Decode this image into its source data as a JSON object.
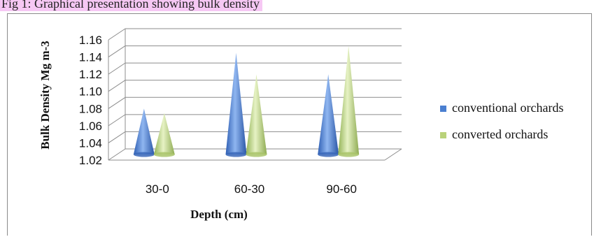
{
  "caption": "Fig 1: Graphical presentation showing bulk density",
  "colors": {
    "caption_highlight": "#f6c8f4",
    "series": [
      "#4a7fd0",
      "#b9d27a"
    ],
    "grid": "#8c8c8c"
  },
  "chart_data": {
    "type": "bar",
    "style": "3d-cone",
    "categories": [
      "30-0",
      "60-30",
      "90-60"
    ],
    "series": [
      {
        "name": "conventional orchards",
        "values": [
          1.075,
          1.14,
          1.115
        ]
      },
      {
        "name": "converted orchards",
        "values": [
          1.07,
          1.115,
          1.148
        ]
      }
    ],
    "xlabel": "Depth (cm)",
    "ylabel": "Bulk Density Mg m-3",
    "ylim": [
      1.02,
      1.16
    ],
    "yticks": [
      "1.02",
      "1.04",
      "1.06",
      "1.08",
      "1.10",
      "1.12",
      "1.14",
      "1.16"
    ],
    "grid": true,
    "legend_position": "right"
  }
}
